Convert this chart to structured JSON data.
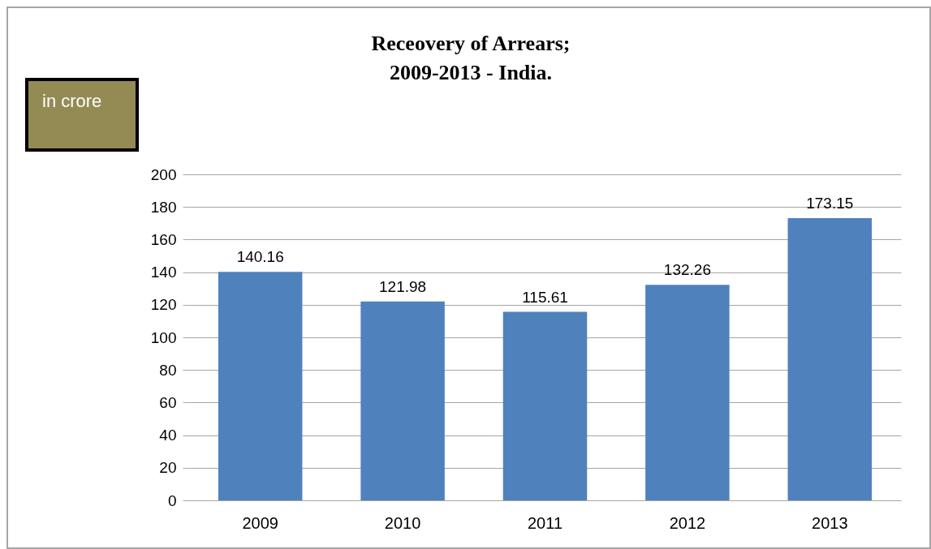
{
  "chart_data": {
    "type": "bar",
    "title": "Receovery of Arrears;\n2009-2013 - India.",
    "ylabel": "in crore",
    "categories": [
      "2009",
      "2010",
      "2011",
      "2012",
      "2013"
    ],
    "values": [
      140.16,
      121.98,
      115.61,
      132.26,
      173.15
    ],
    "color": "#4f81bd",
    "ylim": [
      0,
      200
    ],
    "yticks": [
      0,
      20,
      40,
      60,
      80,
      100,
      120,
      140,
      160,
      180,
      200
    ],
    "grid": "y",
    "data_labels": true
  }
}
